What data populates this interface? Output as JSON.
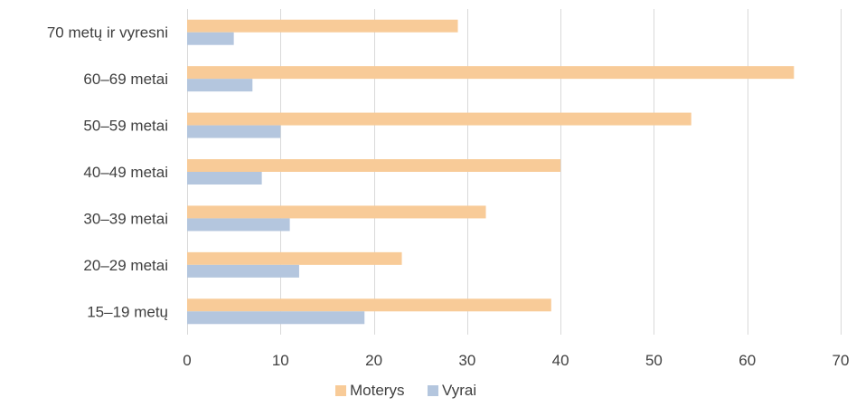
{
  "chart_data": {
    "type": "bar",
    "orientation": "horizontal",
    "categories": [
      "15–19 metų",
      "20–29 metai",
      "30–39 metai",
      "40–49 metai",
      "50–59 metai",
      "60–69 metai",
      "70 metų ir vyresni"
    ],
    "series": [
      {
        "name": "Moterys",
        "color": "#F8CB98",
        "values": [
          39,
          23,
          32,
          40,
          54,
          65,
          29
        ]
      },
      {
        "name": "Vyrai",
        "color": "#B4C6DE",
        "values": [
          19,
          12,
          11,
          8,
          10,
          7,
          5
        ]
      }
    ],
    "xlim": [
      0,
      70
    ],
    "x_ticks": [
      "0",
      "10",
      "20",
      "30",
      "40",
      "50",
      "60",
      "70"
    ],
    "grid": "vertical",
    "legend_position": "bottom",
    "title": "",
    "xlabel": "",
    "ylabel": ""
  },
  "colors": {
    "gridline": "#D9D9D9",
    "label_text": "#404040"
  }
}
